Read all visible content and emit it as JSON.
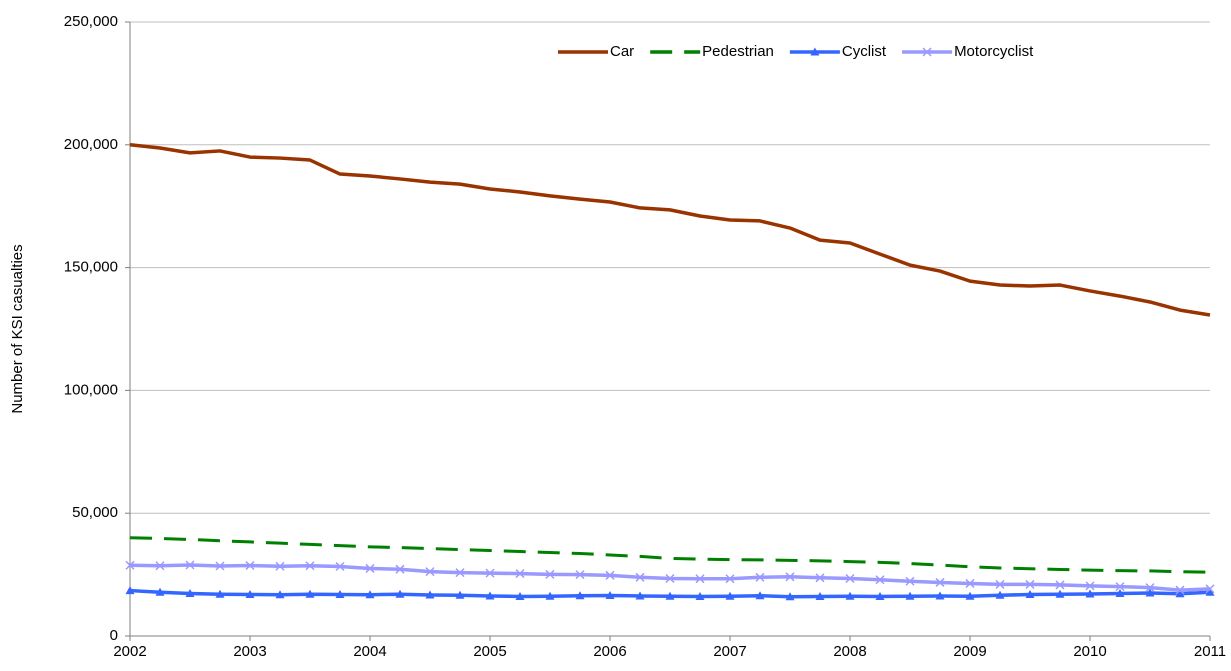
{
  "chart_data": {
    "type": "line",
    "y_label": "Number of KSI casualties",
    "x": [
      2002,
      2002.25,
      2002.5,
      2002.75,
      2003,
      2003.25,
      2003.5,
      2003.75,
      2004,
      2004.25,
      2004.5,
      2004.75,
      2005,
      2005.25,
      2005.5,
      2005.75,
      2006,
      2006.25,
      2006.5,
      2006.75,
      2007,
      2007.25,
      2007.5,
      2007.75,
      2008,
      2008.25,
      2008.5,
      2008.75,
      2009,
      2009.25,
      2009.5,
      2009.75,
      2010,
      2010.25,
      2010.5,
      2010.75,
      2011
    ],
    "series": [
      {
        "name": "Car",
        "color": "#993300",
        "dash": false,
        "marker": "none",
        "values": [
          200000,
          198700,
          196700,
          197500,
          195000,
          194600,
          193800,
          188100,
          187300,
          186100,
          184800,
          184000,
          182000,
          180800,
          179200,
          177900,
          176700,
          174300,
          173500,
          171000,
          169400,
          169000,
          166100,
          161200,
          160000,
          155500,
          151000,
          148600,
          144500,
          142900,
          142500,
          142900,
          140500,
          138400,
          136000,
          132700,
          130700
        ]
      },
      {
        "name": "Pedestrian",
        "color": "#008000",
        "dash": true,
        "marker": "none",
        "values": [
          40000,
          39700,
          39300,
          38800,
          38300,
          37800,
          37300,
          36800,
          36300,
          36000,
          35600,
          35200,
          34800,
          34400,
          34000,
          33600,
          33000,
          32400,
          31600,
          31300,
          31100,
          31000,
          30800,
          30600,
          30300,
          30000,
          29500,
          28900,
          28200,
          27700,
          27400,
          27100,
          26800,
          26600,
          26500,
          26200,
          26000
        ]
      },
      {
        "name": "Cyclist",
        "color": "#3366ff",
        "dash": false,
        "marker": "triangle",
        "values": [
          18500,
          17800,
          17300,
          17000,
          16900,
          16800,
          17000,
          16900,
          16800,
          17000,
          16700,
          16600,
          16300,
          16100,
          16200,
          16400,
          16500,
          16300,
          16200,
          16100,
          16200,
          16400,
          16000,
          16100,
          16200,
          16100,
          16200,
          16300,
          16200,
          16600,
          16900,
          17000,
          17100,
          17300,
          17500,
          17200,
          17800
        ]
      },
      {
        "name": "Motorcyclist",
        "color": "#9999ff",
        "dash": false,
        "marker": "x",
        "values": [
          28800,
          28600,
          28900,
          28500,
          28700,
          28400,
          28600,
          28300,
          27500,
          27200,
          26200,
          25800,
          25600,
          25400,
          25100,
          25000,
          24700,
          23900,
          23400,
          23300,
          23300,
          23900,
          24100,
          23700,
          23400,
          22900,
          22300,
          21800,
          21400,
          21000,
          21000,
          20800,
          20400,
          20100,
          19700,
          18700,
          19200
        ]
      }
    ],
    "xlim": [
      2002,
      2011
    ],
    "xticks": [
      2002,
      2003,
      2004,
      2005,
      2006,
      2007,
      2008,
      2009,
      2010,
      2011
    ],
    "ylim": [
      0,
      250000
    ],
    "yticks": [
      0,
      {
        "value": 50000,
        "label": "50,000"
      },
      {
        "value": 100000,
        "label": "100,000"
      },
      {
        "value": 150000,
        "label": "150,000"
      },
      {
        "value": 200000,
        "label": "200,000"
      },
      {
        "value": 250000,
        "label": "250,000"
      }
    ],
    "grid": true,
    "legend": "upper right"
  }
}
